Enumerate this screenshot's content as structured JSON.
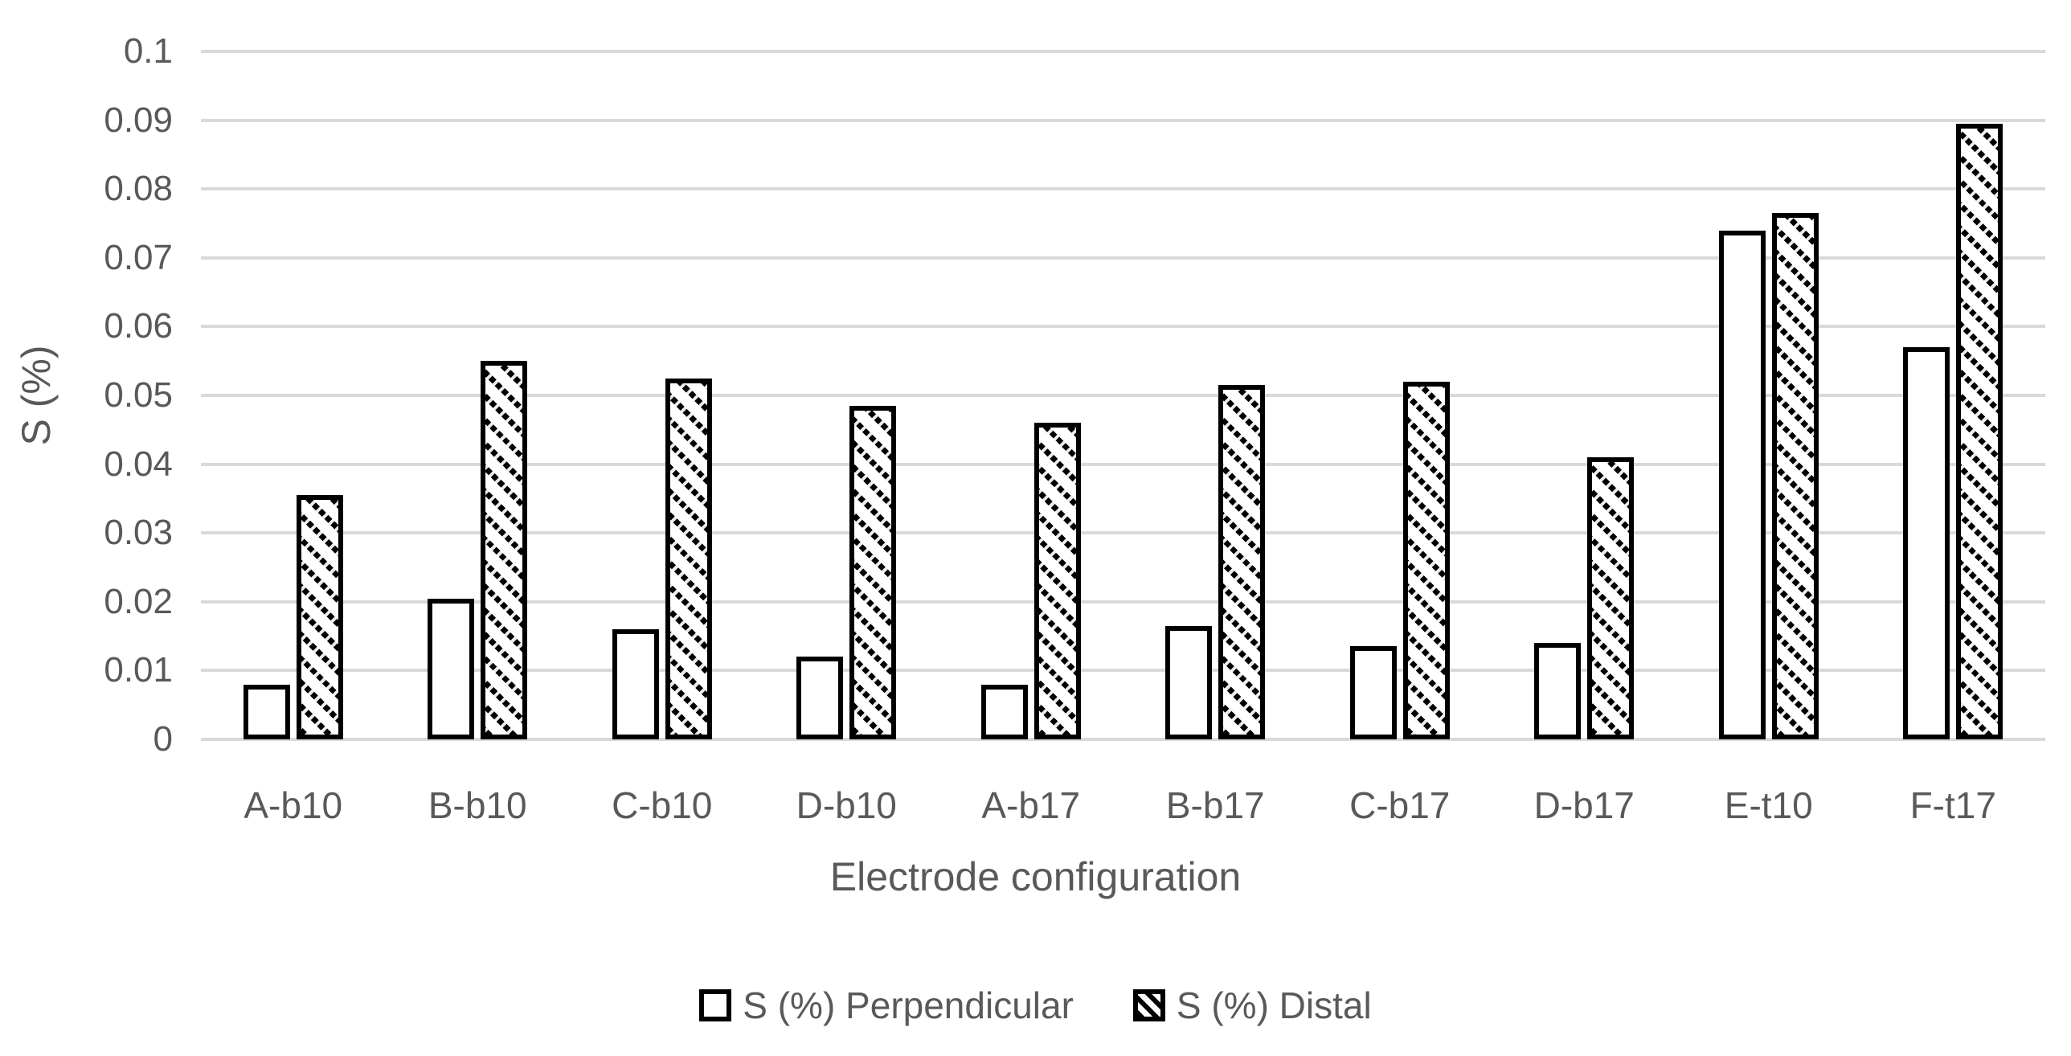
{
  "chart_data": {
    "type": "bar",
    "title": "",
    "categories": [
      "A-b10",
      "B-b10",
      "C-b10",
      "D-b10",
      "A-b17",
      "B-b17",
      "C-b17",
      "D-b17",
      "E-t10",
      "F-t17"
    ],
    "series": [
      {
        "name": "S (%) Perpendicular",
        "fill": "white",
        "values": [
          0.008,
          0.0205,
          0.016,
          0.012,
          0.008,
          0.0165,
          0.0135,
          0.014,
          0.074,
          0.057
        ]
      },
      {
        "name": "S (%) Distal",
        "fill": "hatch",
        "values": [
          0.0355,
          0.055,
          0.0525,
          0.0485,
          0.046,
          0.0515,
          0.052,
          0.041,
          0.0765,
          0.0895
        ]
      }
    ],
    "xlabel": "Electrode configuration",
    "ylabel": "S (%)",
    "ylim": [
      0,
      0.1
    ],
    "ytick_step": 0.01,
    "ytick_labels": [
      "0",
      "0.01",
      "0.02",
      "0.03",
      "0.04",
      "0.05",
      "0.06",
      "0.07",
      "0.08",
      "0.09",
      "0.1"
    ],
    "grid": true,
    "legend_position": "bottom"
  },
  "colors": {
    "grid": "#d9d9d9",
    "text": "#595959",
    "bar_border": "#000000",
    "bar_fill": "#ffffff"
  }
}
